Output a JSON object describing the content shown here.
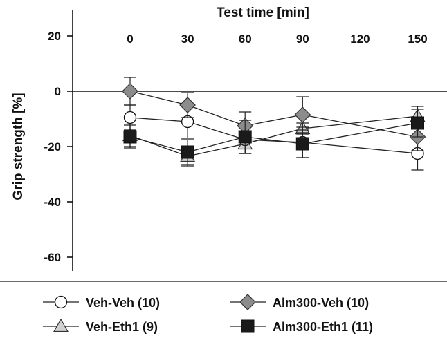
{
  "chart_data": {
    "type": "line",
    "title": "Test time [min]",
    "ylabel": "Grip strength [%]",
    "xlabel": "",
    "x": [
      0,
      30,
      60,
      90,
      120,
      150
    ],
    "x_tick_labels": [
      "0",
      "30",
      "60",
      "90",
      "120",
      "150"
    ],
    "ylim": [
      -65,
      25
    ],
    "y_ticks": [
      20,
      0,
      -20,
      -40,
      -60
    ],
    "y_tick_labels": [
      "20",
      "0",
      "-20",
      "-40",
      "-60"
    ],
    "zero_reference_line": true,
    "grid": false,
    "legend_position": "bottom",
    "series": [
      {
        "name": "Veh-Veh (10)",
        "marker": "circle",
        "fill": "#ffffff",
        "x": [
          0,
          30,
          60,
          90,
          150
        ],
        "values": [
          -9.5,
          -11,
          -17.5,
          -18.5,
          -22.5
        ],
        "errors": [
          4.5,
          6,
          5,
          5.5,
          6
        ]
      },
      {
        "name": "Alm300-Veh (10)",
        "marker": "diamond",
        "fill": "#8c8c8c",
        "x": [
          0,
          30,
          60,
          90,
          150
        ],
        "values": [
          0,
          -5,
          -12.5,
          -8.5,
          -16.5
        ],
        "errors": [
          5,
          4.5,
          5,
          6.5,
          5
        ]
      },
      {
        "name": "Veh-Eth1 (9)",
        "marker": "triangle",
        "fill": "#d0d0d0",
        "x": [
          0,
          30,
          60,
          90,
          150
        ],
        "values": [
          -16,
          -23.5,
          -19,
          -13.5,
          -9
        ],
        "errors": [
          4,
          3.5,
          3.5,
          2,
          3.5
        ]
      },
      {
        "name": "Alm300-Eth1 (11)",
        "marker": "square",
        "fill": "#1a1a1a",
        "x": [
          0,
          30,
          60,
          90,
          150
        ],
        "values": [
          -16.5,
          -22,
          -16.5,
          -19,
          -11.5
        ],
        "errors": [
          4,
          4.5,
          6,
          5,
          5
        ]
      }
    ]
  }
}
